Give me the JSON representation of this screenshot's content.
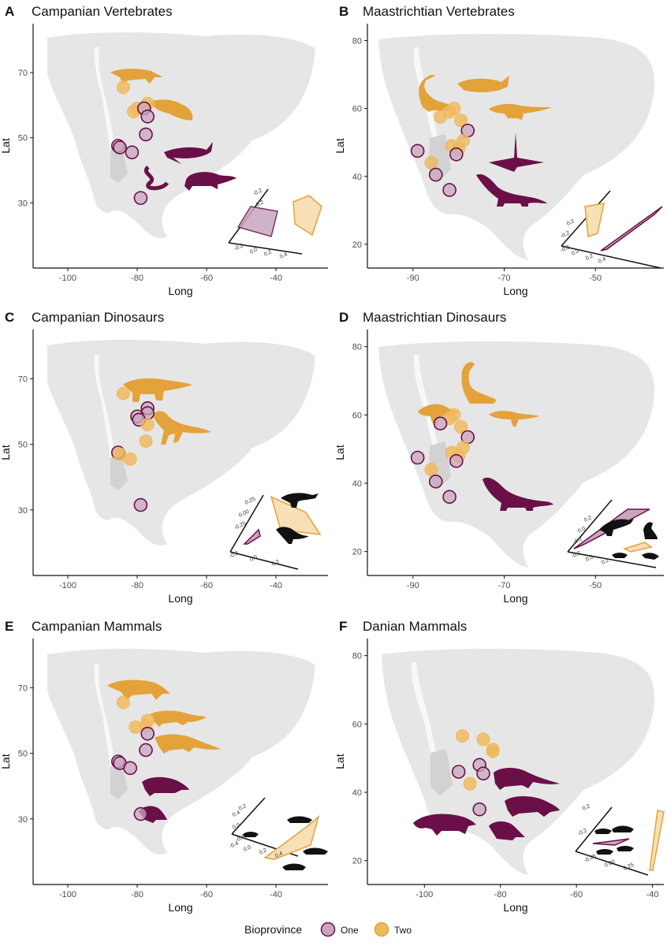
{
  "colors": {
    "one": "#6b0f48",
    "one_fill": "#c9a6c0",
    "two": "#e3a23a",
    "two_fill": "#f0b95a",
    "land": "#e6e6e6",
    "axis": "#111111"
  },
  "legend": {
    "title": "Bioprovince",
    "items": [
      {
        "label": "One",
        "group": "one"
      },
      {
        "label": "Two",
        "group": "two"
      }
    ]
  },
  "chart_data": [
    {
      "id": "A",
      "letter": "A",
      "title": "Campanian Vertebrates",
      "type": "scatter",
      "xlabel": "Long",
      "ylabel": "Lat",
      "xlim": [
        -110,
        -25
      ],
      "ylim": [
        10,
        85
      ],
      "xticks": [
        -100,
        -80,
        -60,
        -40
      ],
      "yticks": [
        30,
        50,
        70
      ],
      "points": [
        {
          "x": -84,
          "y": 65.5,
          "g": "two"
        },
        {
          "x": -77,
          "y": 60.5,
          "g": "two"
        },
        {
          "x": -80,
          "y": 59,
          "g": "two"
        },
        {
          "x": -81,
          "y": 58,
          "g": "two"
        },
        {
          "x": -78,
          "y": 59,
          "g": "one"
        },
        {
          "x": -77,
          "y": 56.5,
          "g": "one"
        },
        {
          "x": -77.5,
          "y": 51,
          "g": "one"
        },
        {
          "x": -85.5,
          "y": 47.5,
          "g": "one"
        },
        {
          "x": -85,
          "y": 47,
          "g": "one"
        },
        {
          "x": -81.5,
          "y": 45.5,
          "g": "one"
        },
        {
          "x": -79,
          "y": 31.5,
          "g": "one"
        }
      ],
      "inset_ticks": [
        "-0.2",
        "0.0",
        "0.2",
        "0.4",
        "-0.2",
        "0.2"
      ]
    },
    {
      "id": "B",
      "letter": "B",
      "title": "Maastrichtian Vertebrates",
      "type": "scatter",
      "xlabel": "Long",
      "ylabel": "Lat",
      "xlim": [
        -100,
        -35
      ],
      "ylim": [
        13,
        85
      ],
      "xticks": [
        -90,
        -70,
        -50
      ],
      "yticks": [
        20,
        40,
        60,
        80
      ],
      "points": [
        {
          "x": -81,
          "y": 60,
          "g": "two"
        },
        {
          "x": -82,
          "y": 59,
          "g": "two"
        },
        {
          "x": -84,
          "y": 57.5,
          "g": "two"
        },
        {
          "x": -79.5,
          "y": 56.5,
          "g": "two"
        },
        {
          "x": -78,
          "y": 53.5,
          "g": "one"
        },
        {
          "x": -81.5,
          "y": 49,
          "g": "two"
        },
        {
          "x": -79,
          "y": 50.5,
          "g": "two"
        },
        {
          "x": -80,
          "y": 48,
          "g": "two"
        },
        {
          "x": -80.5,
          "y": 46.5,
          "g": "one"
        },
        {
          "x": -89,
          "y": 47.5,
          "g": "one"
        },
        {
          "x": -86,
          "y": 44,
          "g": "two"
        },
        {
          "x": -85,
          "y": 40.5,
          "g": "one"
        },
        {
          "x": -82,
          "y": 36,
          "g": "one"
        }
      ],
      "inset_ticks": [
        "-0.2",
        "0.0",
        "0.2",
        "0.4",
        "-0.2",
        "0.2"
      ]
    },
    {
      "id": "C",
      "letter": "C",
      "title": "Campanian Dinosaurs",
      "type": "scatter",
      "xlabel": "Long",
      "ylabel": "Lat",
      "xlim": [
        -110,
        -25
      ],
      "ylim": [
        10,
        85
      ],
      "xticks": [
        -100,
        -80,
        -60,
        -40
      ],
      "yticks": [
        30,
        50,
        70
      ],
      "points": [
        {
          "x": -84,
          "y": 65.5,
          "g": "two"
        },
        {
          "x": -77,
          "y": 61,
          "g": "one"
        },
        {
          "x": -77,
          "y": 59.5,
          "g": "one"
        },
        {
          "x": -80,
          "y": 58.5,
          "g": "one"
        },
        {
          "x": -79.5,
          "y": 57.5,
          "g": "one"
        },
        {
          "x": -77,
          "y": 56,
          "g": "two"
        },
        {
          "x": -77.5,
          "y": 51,
          "g": "two"
        },
        {
          "x": -85.5,
          "y": 47.5,
          "g": "one"
        },
        {
          "x": -85,
          "y": 47,
          "g": "two"
        },
        {
          "x": -82,
          "y": 45.5,
          "g": "two"
        },
        {
          "x": -79,
          "y": 31.5,
          "g": "one"
        }
      ],
      "inset_ticks": [
        "-0.2",
        "0.0",
        "0.2",
        "-0.25",
        "0.00",
        "0.25"
      ]
    },
    {
      "id": "D",
      "letter": "D",
      "title": "Maastrichtian Dinosaurs",
      "type": "scatter",
      "xlabel": "Long",
      "ylabel": "Lat",
      "xlim": [
        -100,
        -35
      ],
      "ylim": [
        13,
        85
      ],
      "xticks": [
        -90,
        -70,
        -50
      ],
      "yticks": [
        20,
        40,
        60,
        80
      ],
      "points": [
        {
          "x": -81,
          "y": 60,
          "g": "two"
        },
        {
          "x": -82,
          "y": 59,
          "g": "two"
        },
        {
          "x": -84,
          "y": 57.5,
          "g": "one"
        },
        {
          "x": -79.5,
          "y": 56.5,
          "g": "two"
        },
        {
          "x": -78,
          "y": 53.5,
          "g": "one"
        },
        {
          "x": -81.5,
          "y": 49,
          "g": "two"
        },
        {
          "x": -79,
          "y": 50.5,
          "g": "two"
        },
        {
          "x": -80,
          "y": 48,
          "g": "two"
        },
        {
          "x": -80.5,
          "y": 46.5,
          "g": "one"
        },
        {
          "x": -89,
          "y": 47.5,
          "g": "one"
        },
        {
          "x": -86,
          "y": 44,
          "g": "two"
        },
        {
          "x": -85,
          "y": 40.5,
          "g": "one"
        },
        {
          "x": -82,
          "y": 36,
          "g": "one"
        }
      ],
      "inset_ticks": [
        "-0.2",
        "0.0",
        "0.2",
        "-0.2",
        "0.0",
        "0.2"
      ]
    },
    {
      "id": "E",
      "letter": "E",
      "title": "Campanian Mammals",
      "type": "scatter",
      "xlabel": "Long",
      "ylabel": "Lat",
      "xlim": [
        -110,
        -25
      ],
      "ylim": [
        10,
        85
      ],
      "xticks": [
        -100,
        -80,
        -60,
        -40
      ],
      "yticks": [
        30,
        50,
        70
      ],
      "points": [
        {
          "x": -84,
          "y": 65.5,
          "g": "two"
        },
        {
          "x": -77,
          "y": 60,
          "g": "two"
        },
        {
          "x": -77.5,
          "y": 58.5,
          "g": "two"
        },
        {
          "x": -80.5,
          "y": 58,
          "g": "two"
        },
        {
          "x": -77,
          "y": 56,
          "g": "one"
        },
        {
          "x": -77.5,
          "y": 51,
          "g": "one"
        },
        {
          "x": -85.5,
          "y": 47.5,
          "g": "one"
        },
        {
          "x": -85,
          "y": 47,
          "g": "one"
        },
        {
          "x": -82,
          "y": 45.5,
          "g": "one"
        },
        {
          "x": -79,
          "y": 31.5,
          "g": "one"
        }
      ],
      "inset_ticks": [
        "0.4",
        "0.2",
        "0.0",
        "-0.2",
        "-0.4",
        "0.0",
        "0.2",
        "0.4"
      ]
    },
    {
      "id": "F",
      "letter": "F",
      "title": "Danian Mammals",
      "type": "scatter",
      "xlabel": "Long",
      "ylabel": "Lat",
      "xlim": [
        -115,
        -37
      ],
      "ylim": [
        13,
        85
      ],
      "xticks": [
        -100,
        -80,
        -60,
        -40
      ],
      "yticks": [
        20,
        40,
        60,
        80
      ],
      "points": [
        {
          "x": -90,
          "y": 56.5,
          "g": "two"
        },
        {
          "x": -84.5,
          "y": 55.5,
          "g": "two"
        },
        {
          "x": -82,
          "y": 52.5,
          "g": "two"
        },
        {
          "x": -82,
          "y": 52,
          "g": "two"
        },
        {
          "x": -85.5,
          "y": 48,
          "g": "one"
        },
        {
          "x": -91,
          "y": 46,
          "g": "one"
        },
        {
          "x": -84.5,
          "y": 45.5,
          "g": "one"
        },
        {
          "x": -88,
          "y": 42.5,
          "g": "two"
        },
        {
          "x": -85.5,
          "y": 35,
          "g": "one"
        }
      ],
      "inset_ticks": [
        "0.2",
        "-0.2",
        "-0.25",
        "0.00",
        "0.25"
      ]
    }
  ]
}
